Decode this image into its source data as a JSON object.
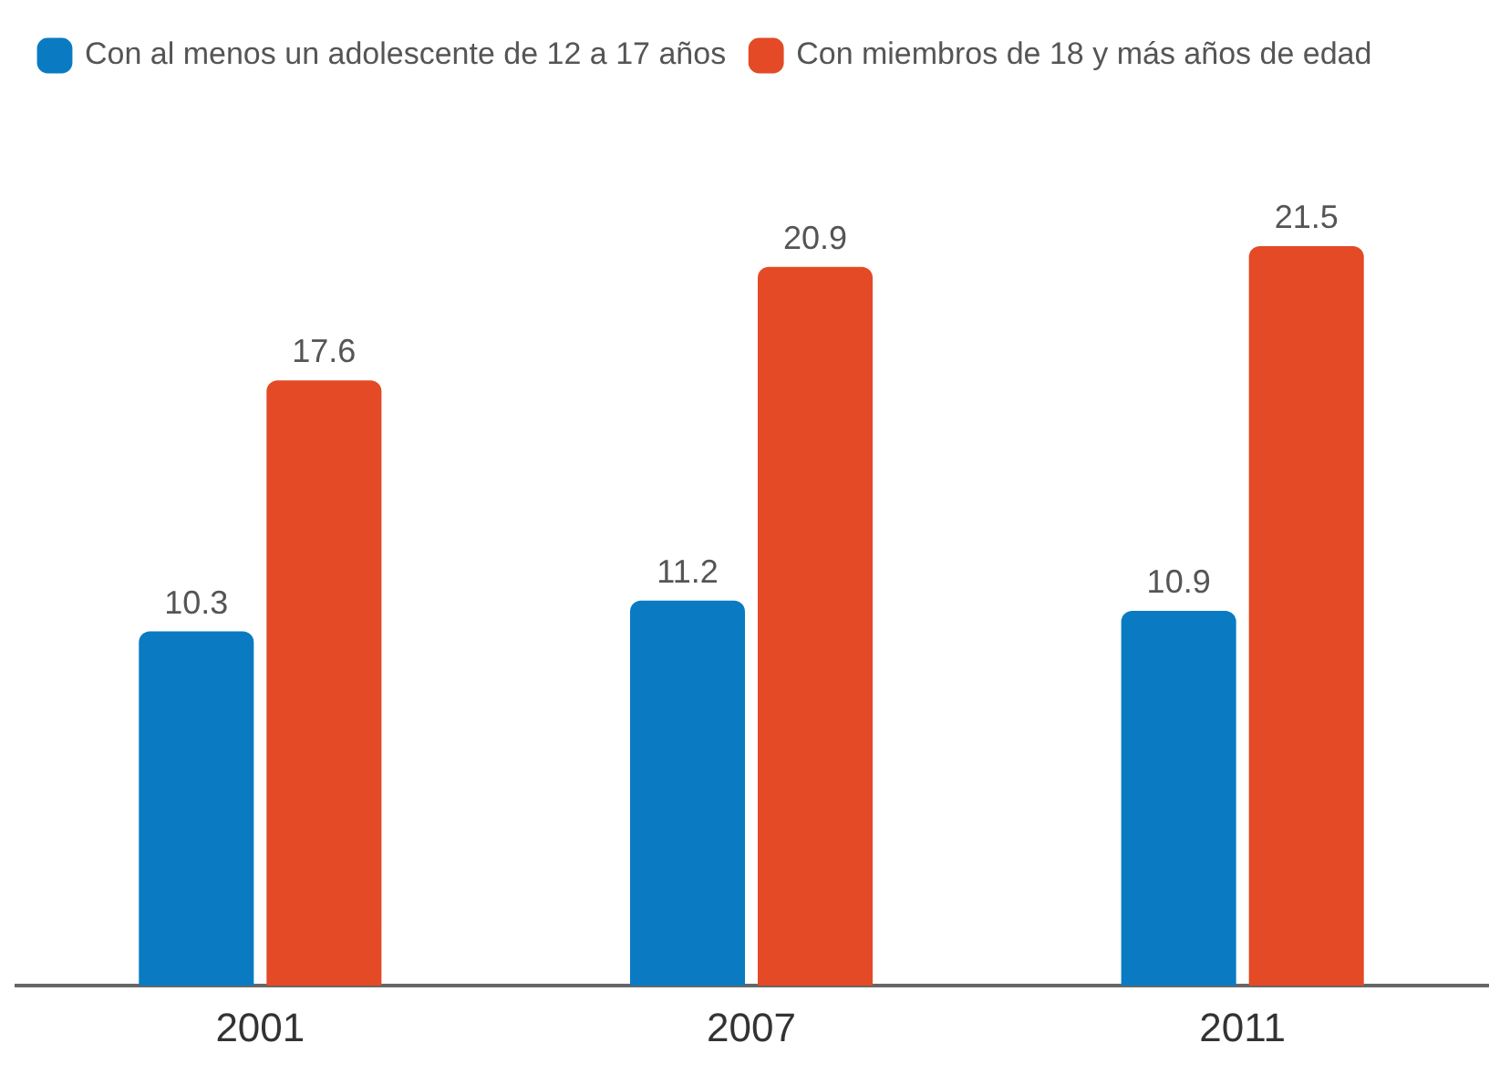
{
  "chart_data": {
    "type": "bar",
    "categories": [
      "2001",
      "2007",
      "2011"
    ],
    "series": [
      {
        "name": "Con al menos un adolescente de 12 a 17 años",
        "color": "#0a7bc2",
        "values": [
          10.3,
          11.2,
          10.9
        ]
      },
      {
        "name": "Con miembros de 18 y más años de edad",
        "color": "#e34a25",
        "values": [
          17.6,
          20.9,
          21.5
        ]
      }
    ],
    "data_labels": true,
    "legend": "top left"
  }
}
